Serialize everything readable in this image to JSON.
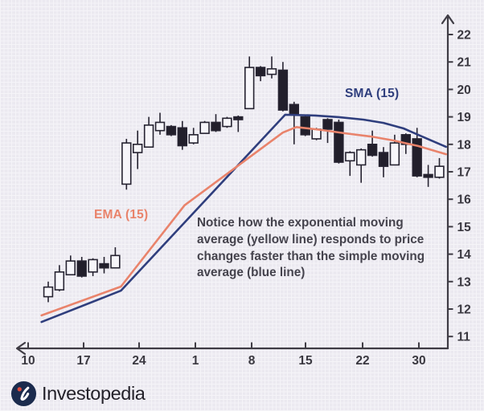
{
  "brand": {
    "name": "Investopedia",
    "logo_icon": "investopedia-swoosh-icon",
    "logo_navy": "#1b2b4d",
    "logo_dot_red": "#dd4a3c",
    "wordmark_color": "#232129"
  },
  "labels": {
    "ema": "EMA (15)",
    "sma": "SMA (15)"
  },
  "annotation": {
    "color": "#45434d",
    "lines": [
      "Notice how the exponential moving",
      "average (yellow line) responds to price",
      "changes faster than the simple moving",
      "average (blue line)"
    ]
  },
  "chart_data": {
    "type": "candlestick",
    "title": "",
    "xlabel": "",
    "ylabel": "",
    "grid": "fine graph paper, on",
    "legend_position": "inline labels next to lines",
    "series_labels": {
      "ema": "EMA (15)",
      "sma": "SMA (15)"
    },
    "colors": {
      "ema": "#e9836b",
      "sma": "#2f3e7d",
      "candle_up_fill": "#f7f6fa",
      "candle_down_fill": "#221f2b",
      "candle_outline": "#262331",
      "axis": "#3f3c45",
      "tick_label": "#3a3840",
      "background": "#ebe9f0"
    },
    "y_axis": {
      "min": 11,
      "max": 22,
      "ticks": [
        11,
        12,
        13,
        14,
        15,
        16,
        17,
        18,
        19,
        20,
        21,
        22
      ],
      "side": "right",
      "arrow": "up"
    },
    "x_axis": {
      "tick_labels": [
        "10",
        "17",
        "24",
        "1",
        "8",
        "15",
        "22",
        "30"
      ],
      "arrow": "left",
      "interval": "weekly date ticks, daily candles"
    },
    "candle_format": [
      "open",
      "high",
      "low",
      "close"
    ],
    "candles": [
      [
        12.45,
        13.0,
        12.25,
        12.8
      ],
      [
        12.7,
        13.6,
        12.65,
        13.35
      ],
      [
        13.25,
        13.95,
        13.25,
        13.75
      ],
      [
        13.75,
        13.9,
        13.15,
        13.2
      ],
      [
        13.35,
        13.85,
        13.2,
        13.8
      ],
      [
        13.65,
        13.9,
        13.3,
        13.5
      ],
      [
        13.5,
        14.25,
        13.5,
        13.95
      ],
      [
        16.55,
        18.2,
        16.35,
        18.05
      ],
      [
        17.7,
        18.5,
        17.1,
        18.0
      ],
      [
        17.9,
        19.0,
        17.9,
        18.7
      ],
      [
        18.5,
        19.15,
        18.35,
        18.8
      ],
      [
        18.65,
        18.7,
        18.3,
        18.35
      ],
      [
        18.6,
        18.85,
        17.8,
        17.95
      ],
      [
        18.05,
        18.6,
        18.0,
        18.35
      ],
      [
        18.4,
        18.85,
        18.4,
        18.8
      ],
      [
        18.8,
        19.1,
        18.45,
        18.5
      ],
      [
        18.65,
        19.0,
        18.6,
        18.95
      ],
      [
        19.0,
        19.05,
        18.45,
        18.9
      ],
      [
        19.3,
        21.2,
        19.3,
        20.8
      ],
      [
        20.8,
        20.85,
        20.3,
        20.5
      ],
      [
        20.55,
        21.2,
        20.4,
        20.75
      ],
      [
        20.7,
        21.0,
        19.2,
        19.25
      ],
      [
        19.45,
        19.55,
        18.0,
        19.1
      ],
      [
        19.0,
        19.05,
        18.3,
        18.35
      ],
      [
        18.2,
        18.6,
        18.15,
        18.55
      ],
      [
        18.9,
        18.95,
        18.05,
        18.55
      ],
      [
        18.8,
        18.9,
        17.3,
        17.35
      ],
      [
        17.4,
        17.75,
        16.85,
        17.7
      ],
      [
        17.25,
        17.85,
        16.6,
        17.8
      ],
      [
        18.0,
        18.5,
        17.55,
        17.6
      ],
      [
        17.7,
        17.9,
        16.8,
        17.2
      ],
      [
        17.25,
        18.35,
        17.25,
        18.05
      ],
      [
        18.35,
        18.4,
        17.65,
        18.0
      ],
      [
        18.2,
        18.6,
        16.8,
        16.85
      ],
      [
        16.9,
        17.25,
        16.45,
        16.8
      ],
      [
        16.8,
        17.5,
        16.75,
        17.2
      ]
    ],
    "series": [
      {
        "name": "SMA (15)",
        "points_session_price": [
          [
            0.4,
            11.53
          ],
          [
            7.5,
            12.67
          ],
          [
            22.2,
            19.08
          ],
          [
            24.9,
            19.05
          ],
          [
            27.0,
            18.99
          ],
          [
            29.2,
            18.9
          ],
          [
            31.0,
            18.78
          ],
          [
            32.8,
            18.58
          ],
          [
            34.6,
            18.26
          ],
          [
            36.6,
            17.91
          ]
        ]
      },
      {
        "name": "EMA (15)",
        "points_session_price": [
          [
            0.4,
            11.77
          ],
          [
            7.5,
            12.82
          ],
          [
            13.2,
            15.78
          ],
          [
            19.0,
            17.53
          ],
          [
            22.0,
            18.43
          ],
          [
            23.2,
            18.63
          ],
          [
            25.5,
            18.52
          ],
          [
            27.6,
            18.4
          ],
          [
            29.8,
            18.29
          ],
          [
            31.9,
            18.14
          ],
          [
            34.1,
            17.94
          ],
          [
            36.6,
            17.64
          ]
        ]
      }
    ]
  }
}
